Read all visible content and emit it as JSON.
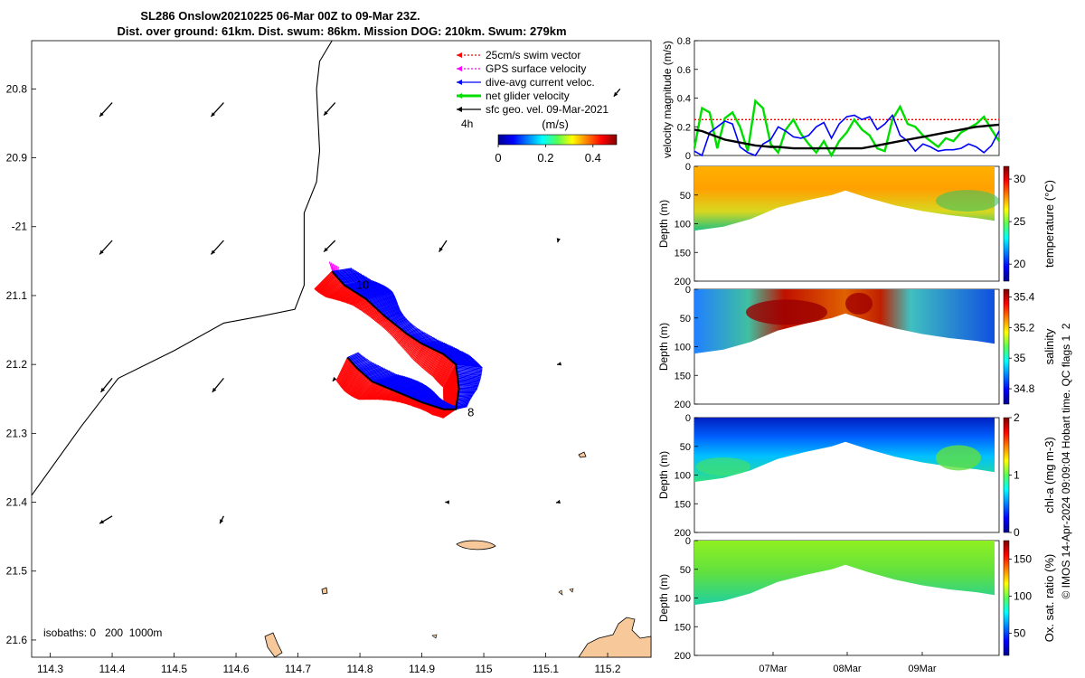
{
  "title": {
    "line1": "SL286 Onslow20210225 06-Mar 00Z to 09-Mar 23Z.",
    "line2": "Dist. over ground: 61km. Dist. swum: 86km. Mission DOG: 210km. Swum: 279km"
  },
  "credit": "© IMOS 14-Apr-2024 09:09:04 Hobart time. QC flags 1  2",
  "colors": {
    "swim": "#ff0000",
    "gps": "#ff00ff",
    "dive_avg": "#0000ff",
    "net": "#00dd00",
    "geo": "#000000",
    "land": "#f7c89a"
  },
  "chart_data": [
    {
      "type": "scatter",
      "role": "map",
      "xlim": [
        114.27,
        115.27
      ],
      "ylim": [
        -21.625,
        -20.73
      ],
      "xticks": [
        114.3,
        114.4,
        114.5,
        114.6,
        114.7,
        114.8,
        114.9,
        115,
        115.1,
        115.2
      ],
      "xtick_labels": [
        "114.3",
        "114.4",
        "114.5",
        "114.6",
        "114.7",
        "114.8",
        "114.9",
        "115",
        "115.1",
        "115.2"
      ],
      "yticks": [
        -20.8,
        -20.9,
        -21.0,
        -21.1,
        -21.2,
        -21.3,
        -21.4,
        -21.5,
        -21.6
      ],
      "ytick_labels": [
        "20.8",
        "20.9",
        "-21",
        "21.1",
        "21.2",
        "21.3",
        "21.4",
        "21.5",
        "21.6"
      ],
      "legend": [
        {
          "label": "25cm/s swim vector",
          "color": "#ff0000",
          "style": "dotted"
        },
        {
          "label": "GPS surface velocity",
          "color": "#ff00ff",
          "style": "dotted"
        },
        {
          "label": "dive-avg current veloc.",
          "color": "#0000ff",
          "style": "solid"
        },
        {
          "label": "net glider velocity",
          "color": "#00dd00",
          "style": "thick"
        },
        {
          "label": "sfc geo. vel. 09-Mar-2021",
          "color": "#000000",
          "style": "solid"
        }
      ],
      "legend_position": "top-right",
      "time_marker": "4h",
      "colorbar": {
        "label": "(m/s)",
        "ticks": [
          0,
          0.2,
          0.4
        ],
        "tick_labels": [
          "0",
          "0.2",
          "0.4"
        ],
        "range": [
          0,
          0.5
        ]
      },
      "isobaths_label": "isobaths: 0   200  1000m",
      "annotations": [
        {
          "text": "10",
          "lon": 114.785,
          "lat": -21.085
        },
        {
          "text": "8",
          "lon": 114.965,
          "lat": -21.27
        }
      ],
      "coastline": [
        [
          114.27,
          -21.39
        ],
        [
          114.35,
          -21.29
        ],
        [
          114.41,
          -21.22
        ],
        [
          114.5,
          -21.18
        ],
        [
          114.58,
          -21.14
        ],
        [
          114.64,
          -21.13
        ],
        [
          114.695,
          -21.12
        ],
        [
          114.71,
          -21.085
        ],
        [
          114.71,
          -20.98
        ],
        [
          114.73,
          -20.935
        ],
        [
          114.735,
          -20.89
        ],
        [
          114.73,
          -20.8
        ],
        [
          114.735,
          -20.76
        ],
        [
          114.755,
          -20.73
        ]
      ],
      "track": [
        [
          114.755,
          -21.065
        ],
        [
          114.775,
          -21.085
        ],
        [
          114.81,
          -21.105
        ],
        [
          114.84,
          -21.13
        ],
        [
          114.875,
          -21.155
        ],
        [
          114.9,
          -21.17
        ],
        [
          114.935,
          -21.185
        ],
        [
          114.955,
          -21.2
        ],
        [
          114.96,
          -21.235
        ],
        [
          114.955,
          -21.265
        ],
        [
          114.935,
          -21.265
        ],
        [
          114.9,
          -21.255
        ],
        [
          114.86,
          -21.24
        ],
        [
          114.82,
          -21.225
        ],
        [
          114.795,
          -21.205
        ],
        [
          114.78,
          -21.19
        ]
      ],
      "geo_vectors": [
        {
          "lon": 114.4,
          "lat": -20.82,
          "u": -0.5,
          "v": -0.55
        },
        {
          "lon": 114.58,
          "lat": -20.82,
          "u": -0.5,
          "v": -0.55
        },
        {
          "lon": 114.76,
          "lat": -20.82,
          "u": -0.45,
          "v": -0.5
        },
        {
          "lon": 115.22,
          "lat": -20.8,
          "u": -0.25,
          "v": -0.3
        },
        {
          "lon": 114.4,
          "lat": -21.02,
          "u": -0.5,
          "v": -0.55
        },
        {
          "lon": 114.58,
          "lat": -21.02,
          "u": -0.5,
          "v": -0.55
        },
        {
          "lon": 114.76,
          "lat": -21.02,
          "u": -0.45,
          "v": -0.45
        },
        {
          "lon": 114.94,
          "lat": -21.02,
          "u": -0.3,
          "v": -0.45
        },
        {
          "lon": 115.12,
          "lat": -21.02,
          "u": -0.02,
          "v": -0.08
        },
        {
          "lon": 114.4,
          "lat": -21.22,
          "u": -0.45,
          "v": -0.55
        },
        {
          "lon": 114.58,
          "lat": -21.22,
          "u": -0.45,
          "v": -0.55
        },
        {
          "lon": 114.76,
          "lat": -21.22,
          "u": -0.1,
          "v": -0.12
        },
        {
          "lon": 115.12,
          "lat": -21.2,
          "u": -0.04,
          "v": -0.01
        },
        {
          "lon": 114.4,
          "lat": -21.42,
          "u": -0.5,
          "v": -0.3
        },
        {
          "lon": 114.58,
          "lat": -21.42,
          "u": -0.15,
          "v": -0.3
        },
        {
          "lon": 114.94,
          "lat": -21.4,
          "u": -0.06,
          "v": 0.0
        },
        {
          "lon": 115.12,
          "lat": -21.4,
          "u": -0.08,
          "v": -0.02
        }
      ]
    },
    {
      "type": "line",
      "role": "velocity",
      "ylabel": "velocity magnitude (m/s)",
      "ylim": [
        0,
        0.8
      ],
      "yticks": [
        0,
        0.2,
        0.4,
        0.6,
        0.8
      ],
      "ytick_labels": [
        "0",
        "0.2",
        "0.4",
        "0.6",
        "0.8"
      ],
      "x": [
        0,
        0.1,
        0.2,
        0.3,
        0.4,
        0.5,
        0.6,
        0.7,
        0.8,
        0.9,
        1.0,
        1.1,
        1.2,
        1.3,
        1.4,
        1.5,
        1.6,
        1.7,
        1.8,
        1.9,
        2.0,
        2.1,
        2.2,
        2.3,
        2.4,
        2.5,
        2.6,
        2.7,
        2.8,
        2.9,
        3.0,
        3.1,
        3.2,
        3.3,
        3.4,
        3.5,
        3.6,
        3.7,
        3.8,
        3.9,
        4.0
      ],
      "series": [
        {
          "color": "#ff0000",
          "style": "dotted",
          "values": [
            0.25,
            0.25,
            0.25,
            0.25,
            0.25,
            0.25,
            0.25,
            0.25,
            0.25,
            0.25,
            0.25,
            0.25,
            0.25,
            0.25,
            0.25,
            0.25,
            0.25,
            0.25,
            0.25,
            0.25,
            0.25,
            0.25,
            0.25,
            0.25,
            0.25,
            0.25,
            0.25,
            0.25,
            0.25,
            0.25,
            0.25,
            0.25,
            0.25,
            0.25,
            0.25,
            0.25,
            0.25,
            0.25,
            0.25,
            0.25,
            0.25
          ]
        },
        {
          "color": "#00dd00",
          "style": "thick",
          "values": [
            0.05,
            0.33,
            0.3,
            0.05,
            0.26,
            0.3,
            0.2,
            0.03,
            0.38,
            0.33,
            0.08,
            0.02,
            0.18,
            0.25,
            0.15,
            0.08,
            0.02,
            0.1,
            0.0,
            0.1,
            0.16,
            0.25,
            0.18,
            0.14,
            0.05,
            0.03,
            0.25,
            0.34,
            0.22,
            0.2,
            0.14,
            0.1,
            0.06,
            0.12,
            0.1,
            0.16,
            0.19,
            0.22,
            0.27,
            0.18,
            0.1
          ]
        },
        {
          "color": "#0000ff",
          "style": "solid",
          "values": [
            0.03,
            0.0,
            0.16,
            0.2,
            0.24,
            0.22,
            0.06,
            0.02,
            0.0,
            0.08,
            0.11,
            0.2,
            0.17,
            0.13,
            0.12,
            0.14,
            0.2,
            0.23,
            0.12,
            0.22,
            0.27,
            0.28,
            0.25,
            0.27,
            0.18,
            0.22,
            0.28,
            0.14,
            0.1,
            0.03,
            0.08,
            0.06,
            0.03,
            0.04,
            0.04,
            0.05,
            0.08,
            0.06,
            0.02,
            0.07,
            0.17
          ]
        },
        {
          "color": "#000000",
          "style": "thick",
          "values": [
            0.18,
            0.17,
            0.15,
            0.13,
            0.11,
            0.1,
            0.09,
            0.08,
            0.07,
            0.065,
            0.06,
            0.06,
            0.055,
            0.05,
            0.05,
            0.05,
            0.05,
            0.05,
            0.05,
            0.05,
            0.05,
            0.05,
            0.05,
            0.06,
            0.07,
            0.08,
            0.09,
            0.1,
            0.11,
            0.12,
            0.13,
            0.14,
            0.15,
            0.16,
            0.17,
            0.18,
            0.19,
            0.2,
            0.205,
            0.21,
            0.215
          ]
        }
      ]
    },
    {
      "type": "heatmap",
      "role": "section",
      "ylabel": "Depth (m)",
      "cbar_label": "temperature (°C)",
      "yticks": [
        0,
        50,
        100,
        150,
        200
      ],
      "ytick_labels": [
        "0",
        "50",
        "100",
        "150",
        "200"
      ],
      "cbar_ticks": [
        20,
        25,
        30
      ],
      "cbar_tick_labels": [
        "20",
        "25",
        "30"
      ],
      "cbar_range": [
        18,
        31.5
      ]
    },
    {
      "type": "heatmap",
      "role": "section",
      "ylabel": "Depth (m)",
      "cbar_label": "salinity",
      "yticks": [
        0,
        50,
        100,
        150,
        200
      ],
      "ytick_labels": [
        "0",
        "50",
        "100",
        "150",
        "200"
      ],
      "cbar_ticks": [
        34.8,
        35,
        35.2,
        35.4
      ],
      "cbar_tick_labels": [
        "34.8",
        "35",
        "35.2",
        "35.4"
      ],
      "cbar_range": [
        34.7,
        35.45
      ]
    },
    {
      "type": "heatmap",
      "role": "section",
      "ylabel": "Depth (m)",
      "cbar_label": "chl-a (mg m-3)",
      "yticks": [
        0,
        50,
        100,
        150,
        200
      ],
      "ytick_labels": [
        "0",
        "50",
        "100",
        "150",
        "200"
      ],
      "cbar_ticks": [
        0,
        1,
        2
      ],
      "cbar_tick_labels": [
        "0",
        "1",
        "2"
      ],
      "cbar_range": [
        0,
        2
      ]
    },
    {
      "type": "heatmap",
      "role": "section",
      "ylabel": "Depth (m)",
      "cbar_label": "Ox. sat. ratio (%)",
      "yticks": [
        0,
        50,
        100,
        150,
        200
      ],
      "ytick_labels": [
        "0",
        "50",
        "100",
        "150",
        "200"
      ],
      "cbar_ticks": [
        50,
        100,
        150
      ],
      "cbar_tick_labels": [
        "50",
        "100",
        "150"
      ],
      "cbar_range": [
        20,
        175
      ],
      "xticks": [
        "07Mar",
        "08Mar",
        "09Mar"
      ]
    }
  ]
}
